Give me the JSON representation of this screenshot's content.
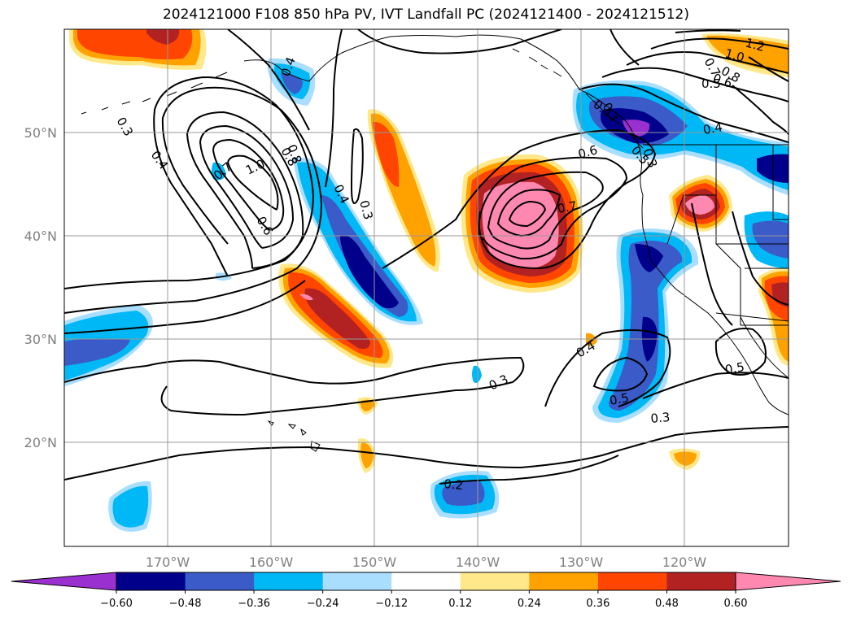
{
  "title": "2024121000 F108 850 hPa PV, IVT Landfall PC (2024121400 - 2024121512)",
  "lat_labels": [
    "50°N",
    "40°N",
    "30°N",
    "20°N"
  ],
  "lon_labels": [
    "170°W",
    "160°W",
    "150°W",
    "140°W",
    "130°W",
    "120°W"
  ],
  "colorbar": {
    "ticks": [
      "−0.60",
      "−0.48",
      "−0.36",
      "−0.24",
      "−0.12",
      "0.12",
      "0.24",
      "0.36",
      "0.48",
      "0.60"
    ],
    "colors": [
      "#9b30d0",
      "#00008b",
      "#3a5bc8",
      "#00b8f5",
      "#aadeff",
      "#ffffff",
      "#ffe88a",
      "#ffa200",
      "#ff4500",
      "#b22222",
      "#ff88b0"
    ]
  },
  "contour_labels": [
    "1.2",
    "1.0",
    "0.8",
    "0.7",
    "0.6",
    "0.5",
    "0.4",
    "0.3",
    "0.5",
    "0.4",
    "0.3",
    "0.4",
    "1.0",
    "0.7",
    "0.8",
    "0.6",
    "0.4",
    "0.3",
    "0.6",
    "0.7",
    "0.8",
    "0.4",
    "0.4",
    "0.3",
    "0.5",
    "0.5",
    "0.3",
    "0.2"
  ]
}
